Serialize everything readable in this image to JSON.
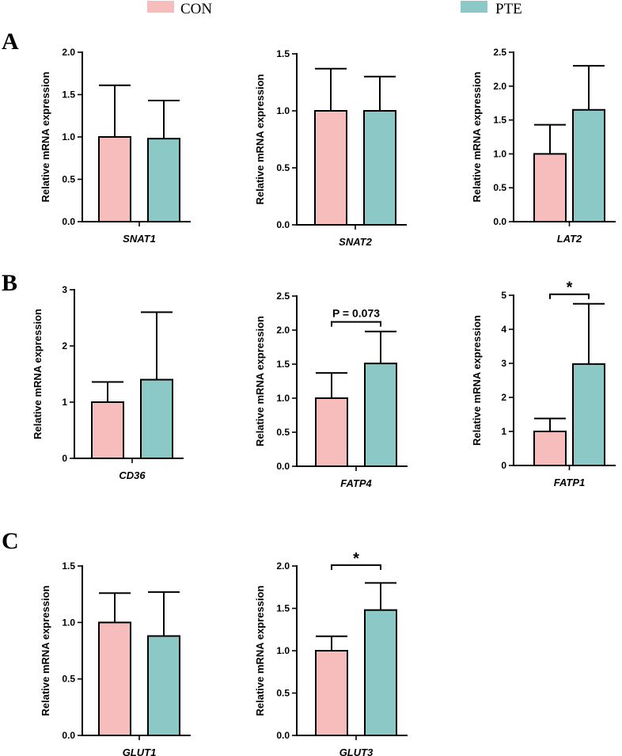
{
  "legend": [
    {
      "label": "CON",
      "color": "#f7bcbc"
    },
    {
      "label": "PTE",
      "color": "#8cc9c6"
    }
  ],
  "panel_letters": [
    "A",
    "B",
    "C"
  ],
  "chart_data": [
    {
      "type": "bar",
      "panel": "A",
      "categories": [
        "CON",
        "PTE"
      ],
      "xlabel": "SNAT1",
      "ylabel": "Relative  mRNA expression",
      "ylim": [
        0,
        2.0
      ],
      "yticks": [
        0.0,
        0.5,
        1.0,
        1.5,
        2.0
      ],
      "yticklabels": [
        "0.0",
        "0.5",
        "1.0",
        "1.5",
        "2.0"
      ],
      "values": [
        1.0,
        0.98
      ],
      "errors": [
        0.61,
        0.45
      ],
      "significance": null
    },
    {
      "type": "bar",
      "panel": "A",
      "categories": [
        "CON",
        "PTE"
      ],
      "xlabel": "SNAT2",
      "ylabel": "Relative  mRNA expression",
      "ylim": [
        0,
        1.5
      ],
      "yticks": [
        0.0,
        0.5,
        1.0,
        1.5
      ],
      "yticklabels": [
        "0.0",
        "0.5",
        "1.0",
        "1.5"
      ],
      "values": [
        1.0,
        1.0
      ],
      "errors": [
        0.37,
        0.3
      ],
      "significance": null
    },
    {
      "type": "bar",
      "panel": "A",
      "categories": [
        "CON",
        "PTE"
      ],
      "xlabel": "LAT2",
      "ylabel": "Relative  mRNA expression",
      "ylim": [
        0,
        2.5
      ],
      "yticks": [
        0.0,
        0.5,
        1.0,
        1.5,
        2.0,
        2.5
      ],
      "yticklabels": [
        "0.0",
        "0.5",
        "1.0",
        "1.5",
        "2.0",
        "2.5"
      ],
      "values": [
        1.0,
        1.65
      ],
      "errors": [
        0.43,
        0.65
      ],
      "significance": null
    },
    {
      "type": "bar",
      "panel": "B",
      "categories": [
        "CON",
        "PTE"
      ],
      "xlabel": "CD36",
      "ylabel": "Relative  mRNA expression",
      "ylim": [
        0,
        3
      ],
      "yticks": [
        0,
        1,
        2,
        3
      ],
      "yticklabels": [
        "0",
        "1",
        "2",
        "3"
      ],
      "values": [
        1.0,
        1.4
      ],
      "errors": [
        0.36,
        1.2
      ],
      "significance": null
    },
    {
      "type": "bar",
      "panel": "B",
      "categories": [
        "CON",
        "PTE"
      ],
      "xlabel": "FATP4",
      "ylabel": "Relative  mRNA expression",
      "ylim": [
        0,
        2.5
      ],
      "yticks": [
        0.0,
        0.5,
        1.0,
        1.5,
        2.0,
        2.5
      ],
      "yticklabels": [
        "0.0",
        "0.5",
        "1.0",
        "1.5",
        "2.0",
        "2.5"
      ],
      "values": [
        1.0,
        1.51
      ],
      "errors": [
        0.37,
        0.47
      ],
      "significance": {
        "label": "P = 0.073",
        "y": 2.12
      }
    },
    {
      "type": "bar",
      "panel": "B",
      "categories": [
        "CON",
        "PTE"
      ],
      "xlabel": "FATP1",
      "ylabel": "Relative  mRNA expression",
      "ylim": [
        0,
        5
      ],
      "yticks": [
        0,
        1,
        2,
        3,
        4,
        5
      ],
      "yticklabels": [
        "0",
        "1",
        "2",
        "3",
        "4",
        "5"
      ],
      "values": [
        1.0,
        2.98
      ],
      "errors": [
        0.38,
        1.77
      ],
      "significance": {
        "label": "*",
        "y": 5.03
      }
    },
    {
      "type": "bar",
      "panel": "C",
      "categories": [
        "CON",
        "PTE"
      ],
      "xlabel": "GLUT1",
      "ylabel": "Relative  mRNA expression",
      "ylim": [
        0,
        1.5
      ],
      "yticks": [
        0.0,
        0.5,
        1.0,
        1.5
      ],
      "yticklabels": [
        "0.0",
        "0.5",
        "1.0",
        "1.5"
      ],
      "values": [
        1.0,
        0.88
      ],
      "errors": [
        0.26,
        0.39
      ],
      "significance": null
    },
    {
      "type": "bar",
      "panel": "C",
      "categories": [
        "CON",
        "PTE"
      ],
      "xlabel": "GLUT3",
      "ylabel": "Relative mRNA expression",
      "ylim": [
        0,
        2.0
      ],
      "yticks": [
        0.0,
        0.5,
        1.0,
        1.5,
        2.0
      ],
      "yticklabels": [
        "0.0",
        "0.5",
        "1.0",
        "1.5",
        "2.0"
      ],
      "values": [
        1.0,
        1.48
      ],
      "errors": [
        0.17,
        0.32
      ],
      "significance": {
        "label": "*",
        "y": 2.01
      }
    }
  ]
}
